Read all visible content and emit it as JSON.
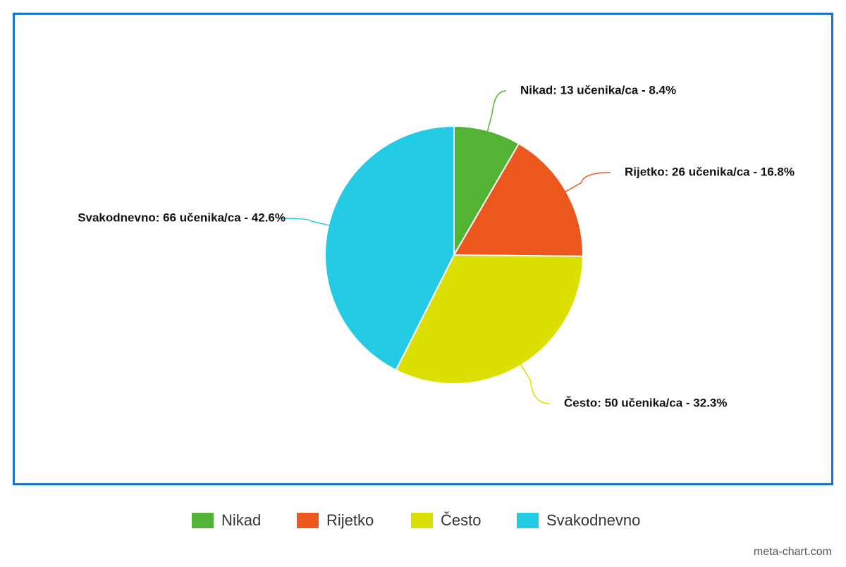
{
  "chart_data": {
    "type": "pie",
    "categories": [
      "Nikad",
      "Rijetko",
      "Često",
      "Svakodnevno"
    ],
    "values": [
      13,
      26,
      50,
      66
    ],
    "value_labels": [
      "Nikad: 13 učenika/ca - 8.4%",
      "Rijetko: 26 učenika/ca - 16.8%",
      "Često: 50 učenika/ca - 32.3%",
      "Svakodnevno: 66 učenika/ca - 42.6%"
    ],
    "colors": [
      "#52b335",
      "#ec571d",
      "#dce000",
      "#24cbe5"
    ],
    "legend": "bottom",
    "credit": "meta-chart.com"
  }
}
